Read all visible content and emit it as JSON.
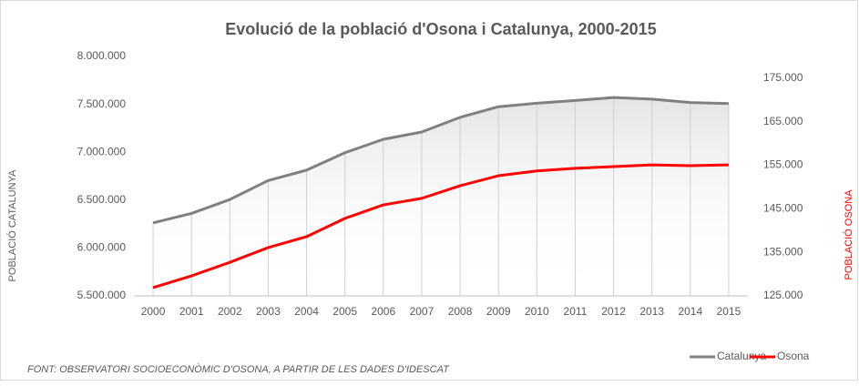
{
  "chart_data": {
    "type": "line",
    "title": "Evolució de la població d'Osona i Catalunya, 2000-2015",
    "ylabel": "POBLACIÓ CATALUNYA",
    "y2label": "POBLACIÓ OSONA",
    "source": "FONT: OBSERVATORI SOCIOECONÒMIC D'OSONA, A PARTIR DE LES DADES D'IDESCAT",
    "categories": [
      "2000",
      "2001",
      "2002",
      "2003",
      "2004",
      "2005",
      "2006",
      "2007",
      "2008",
      "2009",
      "2010",
      "2011",
      "2012",
      "2013",
      "2014",
      "2015"
    ],
    "series": [
      {
        "name": "Catalunya",
        "color": "#808080",
        "values": [
          6262000,
          6361000,
          6506000,
          6704000,
          6813000,
          6995000,
          7135000,
          7211000,
          7364000,
          7475000,
          7512000,
          7540000,
          7571000,
          7554000,
          7519000,
          7508000
        ]
      },
      {
        "name": "Osona",
        "color": "#ff0000",
        "axis": "y2",
        "values": [
          126900,
          129600,
          132700,
          136100,
          138600,
          142800,
          145900,
          147400,
          150300,
          152600,
          153700,
          154300,
          154700,
          155100,
          154900,
          155100
        ]
      }
    ],
    "ylim": [
      5500000,
      8000000
    ],
    "yticks": [
      {
        "value": 5500000,
        "label": "5.500.000"
      },
      {
        "value": 6000000,
        "label": "6.000.000"
      },
      {
        "value": 6500000,
        "label": "6.500.000"
      },
      {
        "value": 7000000,
        "label": "7.000.000"
      },
      {
        "value": 7500000,
        "label": "7.500.000"
      },
      {
        "value": 8000000,
        "label": "8.000.000"
      }
    ],
    "y2lim": [
      125000,
      180000
    ],
    "y2ticks": [
      {
        "value": 125000,
        "label": "125.000"
      },
      {
        "value": 135000,
        "label": "135.000"
      },
      {
        "value": 145000,
        "label": "145.000"
      },
      {
        "value": 155000,
        "label": "155.000"
      },
      {
        "value": 165000,
        "label": "165.000"
      },
      {
        "value": 175000,
        "label": "175.000"
      }
    ],
    "legend": "bottom-right"
  }
}
